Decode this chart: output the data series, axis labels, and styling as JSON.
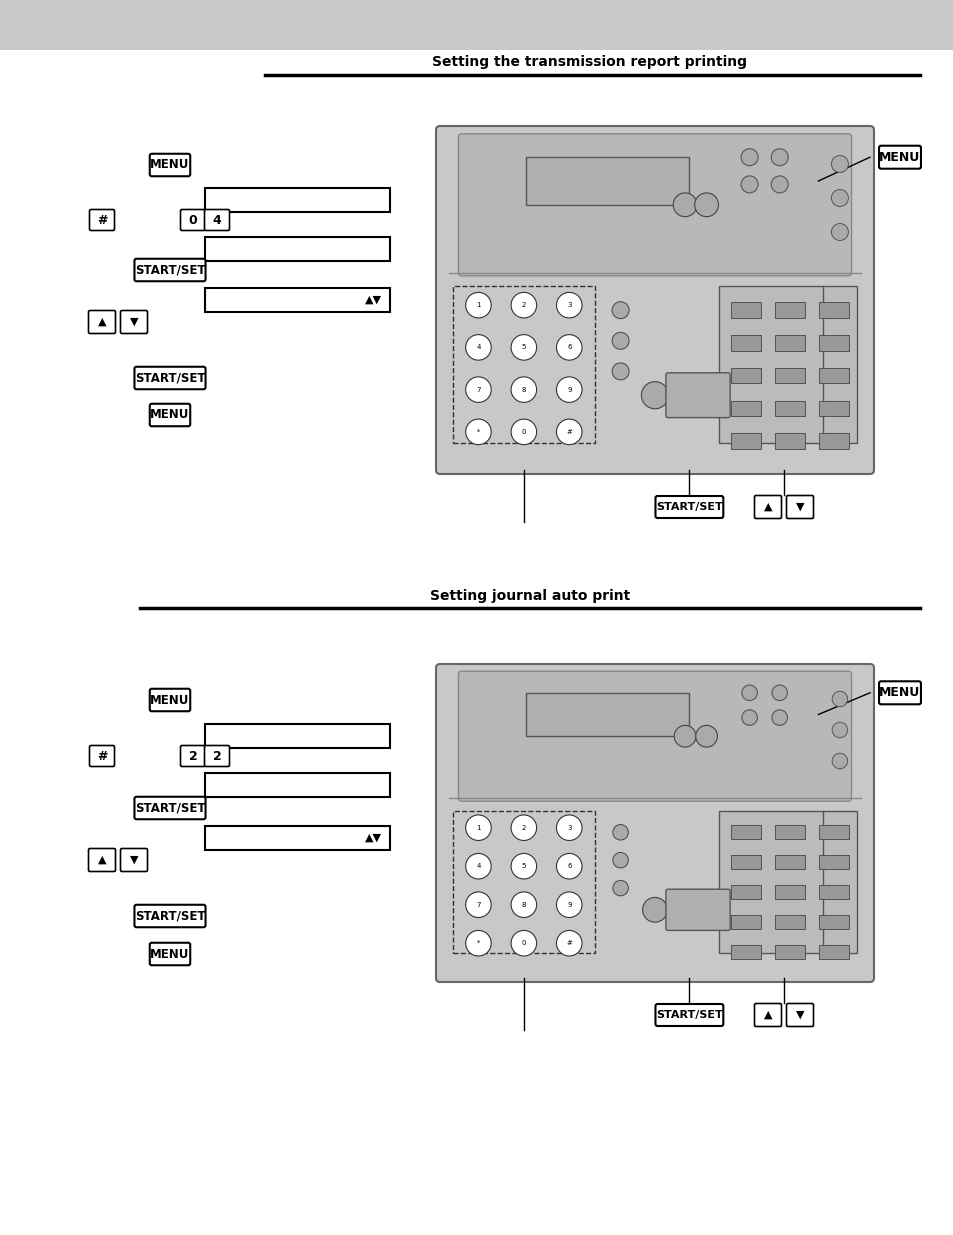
{
  "bg_color": "#ffffff",
  "header_color": "#c8c8c8",
  "section1_title": "Setting the transmission report printing",
  "section2_title": "Setting journal auto print",
  "keys1": [
    "0",
    "4"
  ],
  "keys2": [
    "2",
    "2"
  ]
}
